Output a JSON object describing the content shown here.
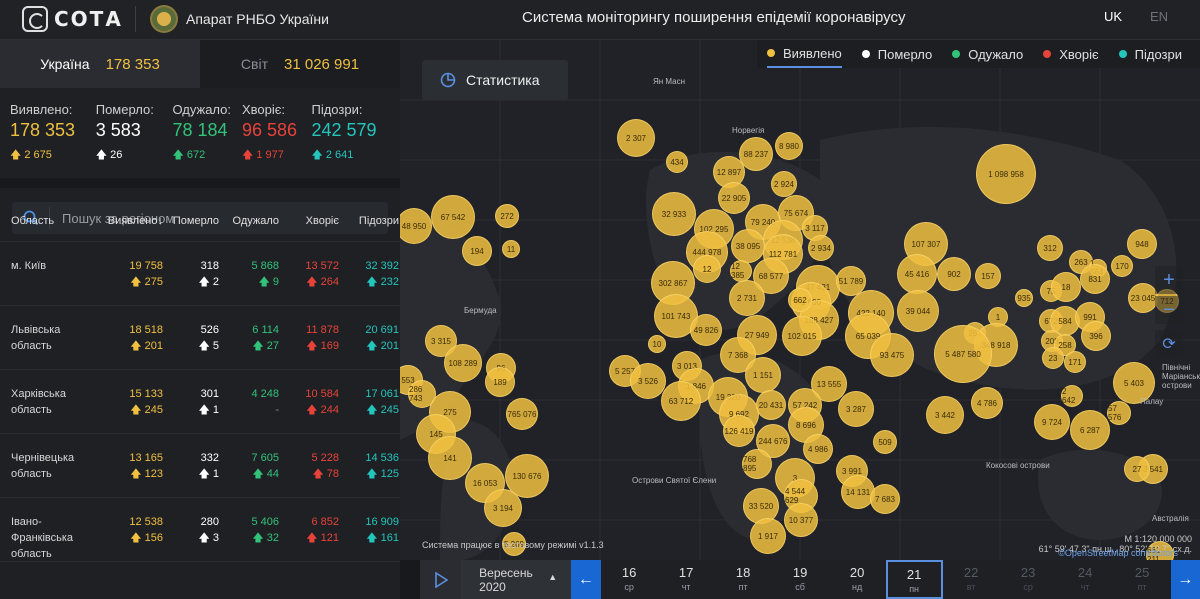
{
  "header": {
    "logo": "СОТА",
    "org": "Апарат РНБО України",
    "title": "Система моніторингу поширення епідемії коронавірусу",
    "lang_uk": "UK",
    "lang_en": "EN"
  },
  "tabs": [
    {
      "label": "Україна",
      "value": "178 353"
    },
    {
      "label": "Світ",
      "value": "31 026 991"
    }
  ],
  "summary": [
    {
      "label": "Виявлено:",
      "value": "178 353",
      "delta": "2 675"
    },
    {
      "label": "Померло:",
      "value": "3 583",
      "delta": "26"
    },
    {
      "label": "Одужало:",
      "value": "78 184",
      "delta": "672"
    },
    {
      "label": "Хворіє:",
      "value": "96 586",
      "delta": "1 977"
    },
    {
      "label": "Підозри:",
      "value": "242 579",
      "delta": "2 641"
    }
  ],
  "search": {
    "placeholder": "Пошук за регіоном"
  },
  "table": {
    "headers": [
      "Область",
      "Виявлено",
      "Померло",
      "Одужало",
      "Хворіє",
      "Підозри"
    ],
    "sort_arrow": "↓",
    "rows": [
      {
        "name": "м. Київ",
        "c": [
          "19 758",
          "318",
          "5 868",
          "13 572",
          "32 392"
        ],
        "d": [
          "275",
          "2",
          "9",
          "264",
          "232"
        ]
      },
      {
        "name": "Львівська область",
        "c": [
          "18 518",
          "526",
          "6 114",
          "11 878",
          "20 691"
        ],
        "d": [
          "201",
          "5",
          "27",
          "169",
          "201"
        ]
      },
      {
        "name": "Харківська область",
        "c": [
          "15 133",
          "301",
          "4 248",
          "10 584",
          "17 061"
        ],
        "d": [
          "245",
          "1",
          "-",
          "244",
          "245"
        ]
      },
      {
        "name": "Чернівецька область",
        "c": [
          "13 165",
          "332",
          "7 605",
          "5 228",
          "14 536"
        ],
        "d": [
          "123",
          "1",
          "44",
          "78",
          "125"
        ]
      },
      {
        "name": "Івано-Франківська область",
        "c": [
          "12 538",
          "280",
          "5 406",
          "6 852",
          "16 909"
        ],
        "d": [
          "156",
          "3",
          "32",
          "121",
          "161"
        ]
      }
    ]
  },
  "map": {
    "legend": [
      "Виявлено",
      "Померло",
      "Одужало",
      "Хворіє",
      "Підозри"
    ],
    "legend_colors": [
      "#f0c040",
      "#ffffff",
      "#33c27a",
      "#e8433a",
      "#23c5bd"
    ],
    "stats_button": "Статистика",
    "labels": [
      "Ян Масн",
      "Норвегія",
      "Бермуда",
      "Острови Святої Єлени",
      "Кокосові острови",
      "Палау",
      "Північні Маріанські острови",
      "Австралія"
    ],
    "bubbles": [
      "2 307",
      "434",
      "88 237",
      "8 980",
      "12 897",
      "2 924",
      "1 098 958",
      "67 542",
      "272",
      "48 950",
      "22 905",
      "75 674",
      "32 933",
      "194",
      "11",
      "102 295",
      "79 240",
      "3 117",
      "12 538",
      "38 095",
      "112 781",
      "2 934",
      "444 978",
      "107 307",
      "312",
      "948",
      "263",
      "1 564",
      "12",
      "12 385",
      "68 577",
      "302 867",
      "47 431",
      "51 789",
      "45 416",
      "902",
      "157",
      "170",
      "75",
      "935",
      "18",
      "831",
      "23 045",
      "712",
      "2 731",
      "1 600",
      "39 044",
      "672",
      "584",
      "991",
      "101 743",
      "188 427",
      "422 140",
      "1",
      "261",
      "49 826",
      "27 949",
      "102 015",
      "65 039",
      "3 315",
      "208",
      "258",
      "396",
      "10",
      "348 918",
      "5 487 580",
      "23",
      "171",
      "7 368",
      "93 475",
      "108 289",
      "96",
      "5 257",
      "3 013",
      "1 151",
      "553",
      "189",
      "3 526",
      "1 846",
      "13 555",
      "5 403",
      "286 743",
      "63 712",
      "19 320",
      "57 242",
      "2 642",
      "275",
      "765 076",
      "9 692",
      "20 431",
      "4 786",
      "3 287",
      "3 442",
      "9 724",
      "57 576",
      "145",
      "126 419",
      "8 696",
      "6 287",
      "244 676",
      "4 986",
      "509",
      "141",
      "768 895",
      "3 991",
      "3 541",
      "27",
      "3",
      "14 131",
      "16 053",
      "130 676",
      "4 544 629",
      "7 683",
      "3 194",
      "33 520",
      "10 377",
      "5 269",
      "1 917",
      "661 211",
      "662"
    ],
    "scale": "М 1:120 000 000",
    "coords": "61° 59' 47.3\" пн.ш., 80° 52' 19.7\" сх.д.",
    "attribution": "©OpenStreetMap contributors",
    "mode": "Система працює в тестовому режимі v1.1.3"
  },
  "timeline": {
    "month": "Вересень",
    "year": "2020",
    "days": [
      {
        "n": "16",
        "w": "ср"
      },
      {
        "n": "17",
        "w": "чт"
      },
      {
        "n": "18",
        "w": "пт"
      },
      {
        "n": "19",
        "w": "сб"
      },
      {
        "n": "20",
        "w": "нд"
      },
      {
        "n": "21",
        "w": "пн"
      },
      {
        "n": "22",
        "w": "вт"
      },
      {
        "n": "23",
        "w": "ср"
      },
      {
        "n": "24",
        "w": "чт"
      },
      {
        "n": "25",
        "w": "пт"
      }
    ]
  }
}
